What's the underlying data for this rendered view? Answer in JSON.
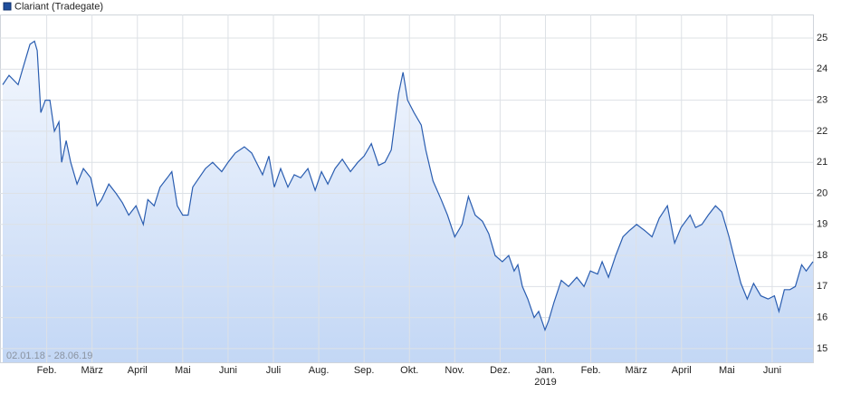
{
  "chart_data": {
    "type": "area-line",
    "range_label": "02.01.18 - 28.06.19",
    "x": [
      0.03,
      0.17,
      0.37,
      0.47,
      0.63,
      0.73,
      0.79,
      0.87,
      0.97,
      1.07,
      1.17,
      1.27,
      1.33,
      1.43,
      1.53,
      1.67,
      1.81,
      1.97,
      2.11,
      2.21,
      2.37,
      2.53,
      2.67,
      2.81,
      2.97,
      3.13,
      3.23,
      3.37,
      3.5,
      3.66,
      3.76,
      3.88,
      4.0,
      4.12,
      4.22,
      4.36,
      4.5,
      4.66,
      4.86,
      5.0,
      5.16,
      5.36,
      5.52,
      5.76,
      5.9,
      6.02,
      6.16,
      6.32,
      6.46,
      6.6,
      6.76,
      6.92,
      7.06,
      7.2,
      7.36,
      7.52,
      7.7,
      7.86,
      8.0,
      8.16,
      8.32,
      8.46,
      8.6,
      8.76,
      8.86,
      8.96,
      9.1,
      9.26,
      9.36,
      9.52,
      9.7,
      9.84,
      10.0,
      10.16,
      10.3,
      10.45,
      10.61,
      10.75,
      10.89,
      11.05,
      11.19,
      11.31,
      11.39,
      11.49,
      11.61,
      11.75,
      11.85,
      11.99,
      12.07,
      12.19,
      12.35,
      12.51,
      12.69,
      12.85,
      12.99,
      13.15,
      13.25,
      13.39,
      13.55,
      13.71,
      13.85,
      14.01,
      14.19,
      14.35,
      14.51,
      14.69,
      14.85,
      14.99,
      15.19,
      15.31,
      15.45,
      15.59,
      15.75,
      15.89,
      16.05,
      16.15,
      16.31,
      16.45,
      16.59,
      16.75,
      16.91,
      17.05,
      17.15,
      17.27,
      17.39,
      17.51,
      17.65,
      17.75,
      17.9
    ],
    "series": [
      {
        "name": "Clariant (Tradegate)",
        "color": "#2a5db0",
        "values": [
          23.5,
          23.8,
          23.5,
          24.0,
          24.8,
          24.9,
          24.6,
          22.6,
          23.0,
          23.0,
          22.0,
          22.3,
          21.0,
          21.7,
          21.0,
          20.3,
          20.8,
          20.5,
          19.6,
          19.8,
          20.3,
          20.0,
          19.7,
          19.3,
          19.6,
          19.0,
          19.8,
          19.6,
          20.2,
          20.5,
          20.7,
          19.6,
          19.3,
          19.3,
          20.2,
          20.5,
          20.8,
          21.0,
          20.7,
          21.0,
          21.3,
          21.5,
          21.3,
          20.6,
          21.2,
          20.2,
          20.8,
          20.2,
          20.6,
          20.5,
          20.8,
          20.1,
          20.7,
          20.3,
          20.8,
          21.1,
          20.7,
          21.0,
          21.2,
          21.6,
          20.9,
          21.0,
          21.4,
          23.2,
          23.9,
          23.0,
          22.6,
          22.2,
          21.4,
          20.4,
          19.8,
          19.3,
          18.6,
          19.0,
          19.9,
          19.3,
          19.1,
          18.7,
          18.0,
          17.8,
          18.0,
          17.5,
          17.7,
          17.0,
          16.6,
          16.0,
          16.2,
          15.6,
          15.9,
          16.5,
          17.2,
          17.0,
          17.3,
          17.0,
          17.5,
          17.4,
          17.8,
          17.3,
          18.0,
          18.6,
          18.8,
          19.0,
          18.8,
          18.6,
          19.2,
          19.6,
          18.4,
          18.9,
          19.3,
          18.9,
          19.0,
          19.3,
          19.6,
          19.4,
          18.6,
          18.0,
          17.1,
          16.6,
          17.1,
          16.7,
          16.6,
          16.7,
          16.2,
          16.9,
          16.9,
          17.0,
          17.7,
          17.5,
          17.8
        ]
      }
    ],
    "xlim": [
      0.03,
      17.9
    ],
    "xticks": [
      {
        "value": 1,
        "label": "Feb."
      },
      {
        "value": 2,
        "label": "März"
      },
      {
        "value": 3,
        "label": "April"
      },
      {
        "value": 4,
        "label": "Mai"
      },
      {
        "value": 5,
        "label": "Juni"
      },
      {
        "value": 6,
        "label": "Juli"
      },
      {
        "value": 7,
        "label": "Aug."
      },
      {
        "value": 8,
        "label": "Sep."
      },
      {
        "value": 9,
        "label": "Okt."
      },
      {
        "value": 10,
        "label": "Nov."
      },
      {
        "value": 11,
        "label": "Dez."
      },
      {
        "value": 12,
        "label": "Jan."
      },
      {
        "value": 13,
        "label": "Feb."
      },
      {
        "value": 14,
        "label": "März"
      },
      {
        "value": 15,
        "label": "April"
      },
      {
        "value": 16,
        "label": "Mai"
      },
      {
        "value": 17,
        "label": "Juni"
      }
    ],
    "year_label": {
      "value": 12,
      "label": "2019"
    },
    "ylim": [
      14.56,
      25.76
    ],
    "yticks": [
      15,
      16,
      17,
      18,
      19,
      20,
      21,
      22,
      23,
      24,
      25
    ],
    "grid": true
  }
}
